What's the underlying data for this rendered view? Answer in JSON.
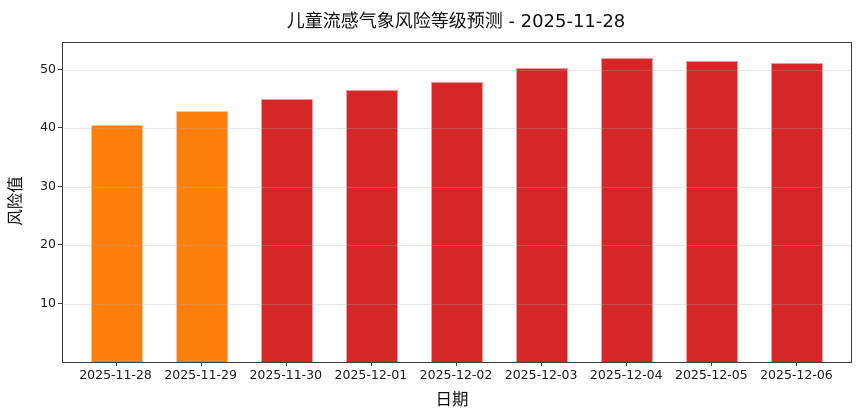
{
  "title": "儿童流感气象风险等级预测 - 2025-11-28",
  "chart_data": {
    "type": "bar",
    "title": "儿童流感气象风险等级预测 - 2025-11-28",
    "xlabel": "日期",
    "ylabel": "风险值",
    "categories": [
      "2025-11-28",
      "2025-11-29",
      "2025-11-30",
      "2025-12-01",
      "2025-12-02",
      "2025-12-03",
      "2025-12-04",
      "2025-12-05",
      "2025-12-06"
    ],
    "values": [
      40.5,
      43.0,
      45.1,
      46.6,
      48.0,
      50.4,
      52.0,
      51.6,
      51.2
    ],
    "bar_colors": [
      "#ff7f0e",
      "#ff7f0e",
      "#d62728",
      "#d62728",
      "#d62728",
      "#d62728",
      "#d62728",
      "#d62728",
      "#d62728"
    ],
    "y_ticks": [
      10,
      20,
      30,
      40,
      50
    ],
    "ylim": [
      0,
      54.6
    ],
    "grid": "horizontal",
    "legend": "none",
    "colors": {
      "orange_bar": "#ff7f0e",
      "red_bar": "#d62728",
      "gridline": "#ececec",
      "spine": "#3d3d3d",
      "text": "#111111"
    }
  }
}
